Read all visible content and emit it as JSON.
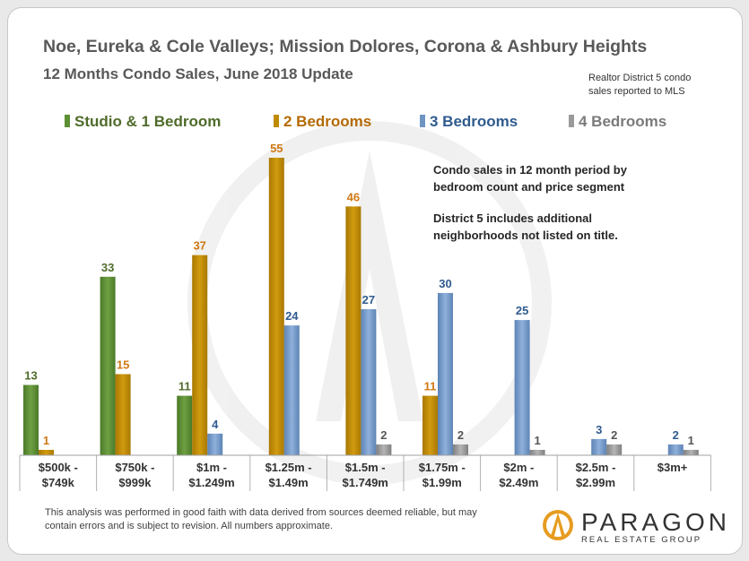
{
  "title": "Noe, Eureka & Cole Valleys; Mission Dolores, Corona & Ashbury Heights",
  "subtitle": "12 Months Condo Sales, June 2018 Update",
  "note_line1": "Realtor District  5 condo",
  "note_line2": "sales reported to MLS",
  "annotation": {
    "line1": "Condo sales in 12 month period by",
    "line2": "bedroom count and price segment",
    "line3": "District 5 includes  additional",
    "line4": "neighborhoods  not listed on title."
  },
  "footer_line1": "This analysis was performed in good faith with data derived from sources deemed reliable, but may",
  "footer_line2": "contain errors and is subject to revision.  All numbers approximate.",
  "logo": {
    "name": "PARAGON",
    "tagline": "REAL ESTATE GROUP"
  },
  "colors": {
    "studio": "#5d8f35",
    "two_bed": "#c08a00",
    "three_bed": "#6f95c4",
    "four_bed": "#9a9a9a",
    "studio_label": "#4f6b2a",
    "two_bed_label": "#d07814",
    "three_bed_label": "#2f5b8e",
    "four_bed_label": "#555555",
    "title": "#595959"
  },
  "chart_data": {
    "type": "bar",
    "categories": [
      [
        "$500k -",
        "$749k"
      ],
      [
        "$750k -",
        "$999k"
      ],
      [
        "$1m -",
        "$1.249m"
      ],
      [
        "$1.25m -",
        "$1.49m"
      ],
      [
        "$1.5m -",
        "$1.749m"
      ],
      [
        "$1.75m -",
        "$1.99m"
      ],
      [
        "$2m -",
        "$2.49m"
      ],
      [
        "$2.5m -",
        "$2.99m"
      ],
      [
        "$3m+"
      ]
    ],
    "ylim": [
      0,
      56
    ],
    "series": [
      {
        "name": "Studio & 1 Bedroom",
        "key": "studio",
        "values": [
          13,
          33,
          11,
          null,
          null,
          null,
          null,
          null,
          null
        ]
      },
      {
        "name": "2 Bedrooms",
        "key": "two_bed",
        "values": [
          1,
          15,
          37,
          55,
          46,
          11,
          null,
          null,
          null
        ]
      },
      {
        "name": "3 Bedrooms",
        "key": "three_bed",
        "values": [
          null,
          null,
          4,
          24,
          27,
          30,
          25,
          3,
          2
        ]
      },
      {
        "name": "4 Bedrooms",
        "key": "four_bed",
        "values": [
          null,
          null,
          null,
          null,
          2,
          2,
          1,
          2,
          1
        ]
      }
    ]
  }
}
